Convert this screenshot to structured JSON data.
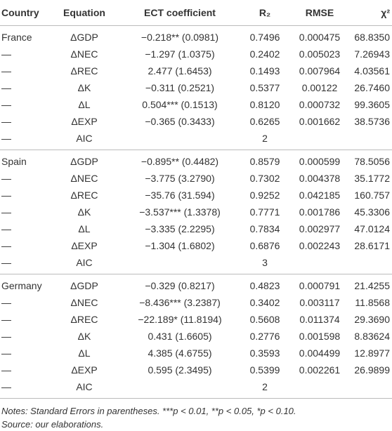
{
  "table": {
    "header": [
      "Country",
      "Equation",
      "ECT coefficient",
      "R₂",
      "RMSE",
      "χ²"
    ],
    "sections": [
      {
        "rows": [
          {
            "country": "France",
            "equation": "ΔGDP",
            "ect": "−0.218** (0.0981)",
            "r2": "0.7496",
            "rmse": "0.000475",
            "chi2": "68.8350"
          },
          {
            "country": "—",
            "equation": "ΔNEC",
            "ect": "−1.297 (1.0375)",
            "r2": "0.2402",
            "rmse": "0.005023",
            "chi2": "7.26943"
          },
          {
            "country": "—",
            "equation": "ΔREC",
            "ect": "2.477 (1.6453)",
            "r2": "0.1493",
            "rmse": "0.007964",
            "chi2": "4.03561"
          },
          {
            "country": "—",
            "equation": "ΔK",
            "ect": "−0.311 (0.2521)",
            "r2": "0.5377",
            "rmse": "0.00122",
            "chi2": "26.7460"
          },
          {
            "country": "—",
            "equation": "ΔL",
            "ect": "0.504*** (0.1513)",
            "r2": "0.8120",
            "rmse": "0.000732",
            "chi2": "99.3605"
          },
          {
            "country": "—",
            "equation": "ΔEXP",
            "ect": "−0.365 (0.3433)",
            "r2": "0.6265",
            "rmse": "0.001662",
            "chi2": "38.5736"
          },
          {
            "country": "—",
            "equation": "AIC",
            "r2": "2"
          }
        ]
      },
      {
        "rows": [
          {
            "country": "Spain",
            "equation": "ΔGDP",
            "ect": "−0.895** (0.4482)",
            "r2": "0.8579",
            "rmse": "0.000599",
            "chi2": "78.5056"
          },
          {
            "country": "—",
            "equation": "ΔNEC",
            "ect": "−3.775 (3.2790)",
            "r2": "0.7302",
            "rmse": "0.004378",
            "chi2": "35.1772"
          },
          {
            "country": "—",
            "equation": "ΔREC",
            "ect": "−35.76 (31.594)",
            "r2": "0.9252",
            "rmse": "0.042185",
            "chi2": "160.757"
          },
          {
            "country": "—",
            "equation": "ΔK",
            "ect": "−3.537*** (1.3378)",
            "r2": "0.7771",
            "rmse": "0.001786",
            "chi2": "45.3306"
          },
          {
            "country": "—",
            "equation": "ΔL",
            "ect": "−3.335 (2.2295)",
            "r2": "0.7834",
            "rmse": "0.002977",
            "chi2": "47.0124"
          },
          {
            "country": "—",
            "equation": "ΔEXP",
            "ect": "−1.304 (1.6802)",
            "r2": "0.6876",
            "rmse": "0.002243",
            "chi2": "28.6171"
          },
          {
            "country": "—",
            "equation": "AIC",
            "r2": "3"
          }
        ]
      },
      {
        "rows": [
          {
            "country": "Germany",
            "equation": "ΔGDP",
            "ect": "−0.329 (0.8217)",
            "r2": "0.4823",
            "rmse": "0.000791",
            "chi2": "21.4255"
          },
          {
            "country": "—",
            "equation": "ΔNEC",
            "ect": "−8.436*** (3.2387)",
            "r2": "0.3402",
            "rmse": "0.003117",
            "chi2": "11.8568"
          },
          {
            "country": "—",
            "equation": "ΔREC",
            "ect": "−22.189* (11.8194)",
            "r2": "0.5608",
            "rmse": "0.011374",
            "chi2": "29.3690"
          },
          {
            "country": "—",
            "equation": "ΔK",
            "ect": "0.431 (1.6605)",
            "r2": "0.2776",
            "rmse": "0.001598",
            "chi2": "8.83624"
          },
          {
            "country": "—",
            "equation": "ΔL",
            "ect": "4.385 (4.6755)",
            "r2": "0.3593",
            "rmse": "0.004499",
            "chi2": "12.8977"
          },
          {
            "country": "—",
            "equation": "ΔEXP",
            "ect": "0.595 (2.3495)",
            "r2": "0.5399",
            "rmse": "0.002261",
            "chi2": "26.9899"
          },
          {
            "country": "—",
            "equation": "AIC",
            "r2": "2"
          }
        ]
      }
    ]
  },
  "notes": [
    "Notes: Standard Errors in parentheses. ***p < 0.01, **p < 0.05, *p < 0.10.",
    "Source: our elaborations."
  ]
}
